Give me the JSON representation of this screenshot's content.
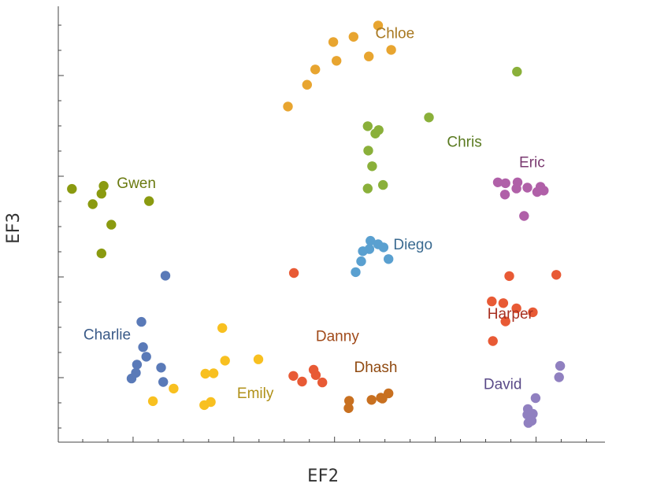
{
  "chart_data": {
    "type": "scatter",
    "xlabel": "EF2",
    "ylabel": "EF3",
    "xlim": [
      0,
      1
    ],
    "ylim": [
      0,
      1
    ],
    "tick_labels": "none",
    "grid": false,
    "legend": "none",
    "series": [
      {
        "name": "Chloe",
        "color": "#e8a530",
        "label_color": "#a87820",
        "label_pos": [
          0.58,
          0.927
        ],
        "points": [
          [
            0.503,
            0.918
          ],
          [
            0.54,
            0.93
          ],
          [
            0.585,
            0.956
          ],
          [
            0.568,
            0.885
          ],
          [
            0.455,
            0.82
          ],
          [
            0.42,
            0.77
          ],
          [
            0.509,
            0.875
          ],
          [
            0.47,
            0.855
          ],
          [
            0.609,
            0.9
          ]
        ]
      },
      {
        "name": "Chris",
        "color": "#8ab03a",
        "label_color": "#5a7a20",
        "label_pos": [
          0.711,
          0.678
        ],
        "points": [
          [
            0.678,
            0.745
          ],
          [
            0.566,
            0.725
          ],
          [
            0.586,
            0.716
          ],
          [
            0.58,
            0.708
          ],
          [
            0.567,
            0.669
          ],
          [
            0.574,
            0.633
          ],
          [
            0.594,
            0.59
          ],
          [
            0.566,
            0.582
          ],
          [
            0.839,
            0.85
          ]
        ]
      },
      {
        "name": "Eric",
        "color": "#b060a8",
        "label_color": "#7a3a70",
        "label_pos": [
          0.843,
          0.631
        ],
        "points": [
          [
            0.84,
            0.596
          ],
          [
            0.818,
            0.594
          ],
          [
            0.838,
            0.582
          ],
          [
            0.858,
            0.584
          ],
          [
            0.876,
            0.574
          ],
          [
            0.888,
            0.577
          ],
          [
            0.882,
            0.586
          ],
          [
            0.804,
            0.596
          ],
          [
            0.817,
            0.568
          ],
          [
            0.852,
            0.519
          ]
        ]
      },
      {
        "name": "Gwen",
        "color": "#8a9a10",
        "label_color": "#6a7a10",
        "label_pos": [
          0.107,
          0.583
        ],
        "points": [
          [
            0.025,
            0.581
          ],
          [
            0.083,
            0.588
          ],
          [
            0.079,
            0.57
          ],
          [
            0.063,
            0.546
          ],
          [
            0.097,
            0.499
          ],
          [
            0.079,
            0.433
          ],
          [
            0.166,
            0.553
          ]
        ]
      },
      {
        "name": "Diego",
        "color": "#5aa0d0",
        "label_color": "#3a6a90",
        "label_pos": [
          0.613,
          0.442
        ],
        "points": [
          [
            0.571,
            0.462
          ],
          [
            0.585,
            0.454
          ],
          [
            0.595,
            0.447
          ],
          [
            0.569,
            0.443
          ],
          [
            0.554,
            0.415
          ],
          [
            0.557,
            0.438
          ],
          [
            0.604,
            0.42
          ],
          [
            0.544,
            0.39
          ]
        ]
      },
      {
        "name": "Harper",
        "color": "#e85a35",
        "label_color": "#a83020",
        "label_pos": [
          0.785,
          0.283
        ],
        "points": [
          [
            0.825,
            0.381
          ],
          [
            0.911,
            0.384
          ],
          [
            0.793,
            0.323
          ],
          [
            0.814,
            0.319
          ],
          [
            0.838,
            0.307
          ],
          [
            0.868,
            0.298
          ],
          [
            0.818,
            0.277
          ],
          [
            0.795,
            0.232
          ],
          [
            0.431,
            0.388
          ]
        ]
      },
      {
        "name": "Charlie",
        "color": "#5a7ab8",
        "label_color": "#3a5a88",
        "label_pos": [
          0.046,
          0.236
        ],
        "points": [
          [
            0.196,
            0.382
          ],
          [
            0.152,
            0.276
          ],
          [
            0.155,
            0.218
          ],
          [
            0.161,
            0.196
          ],
          [
            0.144,
            0.178
          ],
          [
            0.134,
            0.146
          ],
          [
            0.188,
            0.171
          ],
          [
            0.142,
            0.159
          ],
          [
            0.192,
            0.138
          ]
        ]
      },
      {
        "name": "Emily",
        "color": "#f8c020",
        "label_color": "#b09018",
        "label_pos": [
          0.327,
          0.101
        ],
        "points": [
          [
            0.3,
            0.262
          ],
          [
            0.366,
            0.19
          ],
          [
            0.305,
            0.187
          ],
          [
            0.284,
            0.158
          ],
          [
            0.269,
            0.157
          ],
          [
            0.173,
            0.094
          ],
          [
            0.211,
            0.123
          ],
          [
            0.267,
            0.085
          ],
          [
            0.279,
            0.092
          ]
        ]
      },
      {
        "name": "Danny",
        "color": "#e85a35",
        "label_color": "#a04a1a",
        "label_pos": [
          0.471,
          0.232
        ],
        "points": [
          [
            0.471,
            0.154
          ],
          [
            0.467,
            0.166
          ],
          [
            0.446,
            0.139
          ],
          [
            0.483,
            0.137
          ],
          [
            0.43,
            0.152
          ]
        ]
      },
      {
        "name": "Dhash",
        "color": "#c87020",
        "label_color": "#904a10",
        "label_pos": [
          0.541,
          0.161
        ],
        "points": [
          [
            0.573,
            0.097
          ],
          [
            0.59,
            0.102
          ],
          [
            0.604,
            0.112
          ],
          [
            0.593,
            0.1
          ],
          [
            0.532,
            0.095
          ],
          [
            0.531,
            0.078
          ]
        ]
      },
      {
        "name": "David",
        "color": "#9080c0",
        "label_color": "#5a4a88",
        "label_pos": [
          0.778,
          0.122
        ],
        "points": [
          [
            0.918,
            0.175
          ],
          [
            0.916,
            0.149
          ],
          [
            0.873,
            0.101
          ],
          [
            0.859,
            0.076
          ],
          [
            0.858,
            0.063
          ],
          [
            0.868,
            0.065
          ],
          [
            0.866,
            0.049
          ],
          [
            0.86,
            0.044
          ]
        ]
      }
    ]
  }
}
